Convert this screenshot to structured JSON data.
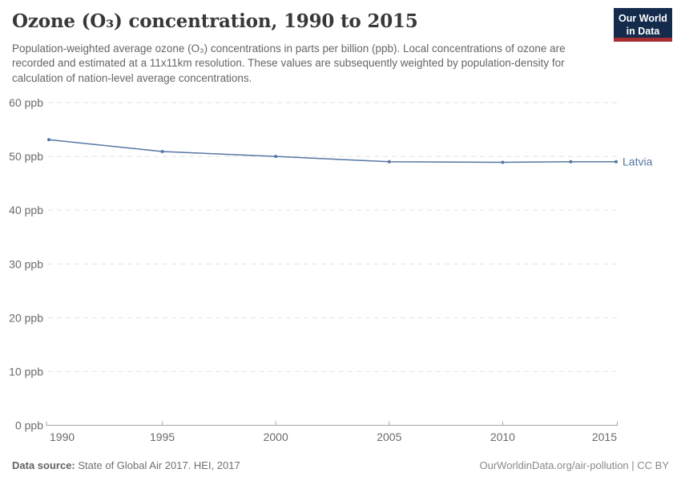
{
  "header": {
    "title": "Ozone (O₃) concentration, 1990 to 2015",
    "logo": {
      "line1": "Our World",
      "line2": "in Data"
    }
  },
  "subtitle": "Population-weighted average ozone (O₃) concentrations in parts per billion (ppb). Local concentrations of ozone are recorded and estimated at a 11x11km resolution. These values are subsequently weighted by population-density for calculation of nation-level average concentrations.",
  "chart_data": {
    "type": "line",
    "title": "Ozone (O₃) concentration, 1990 to 2015",
    "xlabel": "",
    "ylabel": "",
    "unit": "ppb",
    "x": [
      1990,
      1995,
      2000,
      2005,
      2010,
      2013,
      2015
    ],
    "series": [
      {
        "name": "Latvia",
        "color": "#5777a3",
        "values": [
          53.1,
          50.9,
          50.0,
          49.0,
          48.9,
          49.0,
          49.0
        ]
      }
    ],
    "xlim": [
      1990,
      2015
    ],
    "ylim": [
      0,
      60
    ],
    "x_ticks": [
      1990,
      1995,
      2000,
      2005,
      2010,
      2015
    ],
    "y_ticks": [
      0,
      10,
      20,
      30,
      40,
      50,
      60
    ],
    "y_tick_suffix": " ppb",
    "grid": "horizontal-dashed",
    "legend_position": "end-of-line"
  },
  "colors": {
    "line": "#5777a3",
    "grid": "#e2e2e2",
    "axis": "#a5a5a5",
    "tick_text": "#6b6b6b",
    "logo_bg": "#142b4c",
    "logo_accent": "#a52c31"
  },
  "footer": {
    "datasource_label": "Data source:",
    "datasource_text": "State of Global Air 2017. HEI, 2017",
    "credit": "OurWorldinData.org/air-pollution | CC BY"
  }
}
